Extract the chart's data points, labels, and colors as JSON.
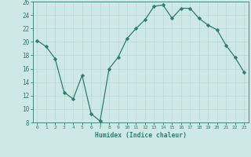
{
  "x": [
    0,
    1,
    2,
    3,
    4,
    5,
    6,
    7,
    8,
    9,
    10,
    11,
    12,
    13,
    14,
    15,
    16,
    17,
    18,
    19,
    20,
    21,
    22,
    23
  ],
  "y": [
    20.2,
    19.3,
    17.5,
    12.5,
    11.5,
    15.0,
    9.3,
    8.2,
    16.0,
    17.7,
    20.5,
    22.0,
    23.3,
    25.3,
    25.5,
    23.5,
    25.0,
    25.0,
    23.5,
    22.5,
    21.8,
    19.5,
    17.7,
    15.5
  ],
  "line_color": "#2e7d6e",
  "marker": "D",
  "marker_size": 2.2,
  "bg_color": "#cde8e5",
  "grid_color": "#b8d8d4",
  "xlabel": "Humidex (Indice chaleur)",
  "ylim": [
    8,
    26
  ],
  "xlim": [
    -0.5,
    23.5
  ],
  "yticks": [
    8,
    10,
    12,
    14,
    16,
    18,
    20,
    22,
    24,
    26
  ],
  "xticks": [
    0,
    1,
    2,
    3,
    4,
    5,
    6,
    7,
    8,
    9,
    10,
    11,
    12,
    13,
    14,
    15,
    16,
    17,
    18,
    19,
    20,
    21,
    22,
    23
  ]
}
